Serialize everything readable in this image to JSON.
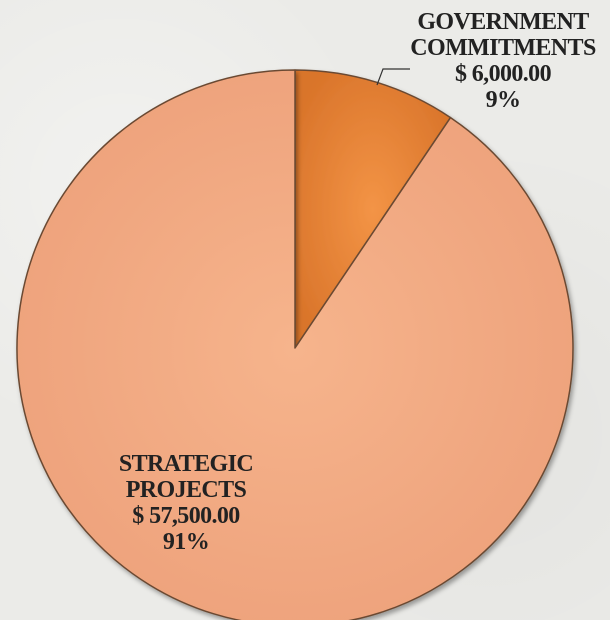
{
  "chart_data": {
    "type": "pie",
    "title": "",
    "slices": [
      {
        "category_lines": [
          "GOVERNMENT",
          "COMMITMENTS"
        ],
        "value": 6000,
        "value_label": "$ 6,000.00",
        "percent": 9,
        "percent_label": "9%",
        "color": "#e88a3f"
      },
      {
        "category_lines": [
          "STRATEGIC",
          "PROJECTS"
        ],
        "value": 57500,
        "value_label": "$ 57,500.00",
        "percent": 91,
        "percent_label": "91%",
        "color": "#f3a97e"
      }
    ],
    "start_angle_deg": 0,
    "direction": "clockwise",
    "legend": "none"
  }
}
